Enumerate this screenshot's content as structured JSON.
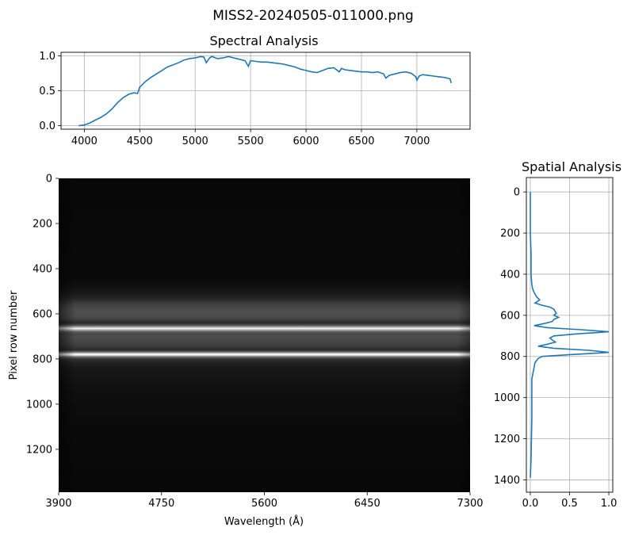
{
  "figure_title": "MISS2-20240505-011000.png",
  "colors": {
    "line": "#1f77b4",
    "grid": "#b0b0b0",
    "axes": "#000000"
  },
  "chart_data": [
    {
      "id": "spectral",
      "type": "line",
      "title": "Spectral Analysis",
      "xlabel": "",
      "ylabel": "",
      "xlim": [
        3790,
        7480
      ],
      "ylim": [
        -0.05,
        1.05
      ],
      "xticks": [
        4000,
        4500,
        5000,
        5500,
        6000,
        6500,
        7000
      ],
      "yticks": [
        0.0,
        0.5,
        1.0
      ],
      "ytick_labels": [
        "0.0",
        "0.5",
        "1.0"
      ],
      "grid": true,
      "x": [
        3950,
        4000,
        4050,
        4100,
        4150,
        4200,
        4250,
        4300,
        4350,
        4400,
        4450,
        4480,
        4500,
        4550,
        4600,
        4650,
        4700,
        4750,
        4800,
        4850,
        4900,
        4950,
        5000,
        5050,
        5080,
        5100,
        5130,
        5150,
        5200,
        5250,
        5300,
        5350,
        5400,
        5450,
        5480,
        5500,
        5550,
        5600,
        5650,
        5700,
        5750,
        5800,
        5850,
        5900,
        5950,
        6000,
        6050,
        6100,
        6150,
        6200,
        6250,
        6300,
        6320,
        6350,
        6400,
        6450,
        6500,
        6550,
        6600,
        6650,
        6700,
        6720,
        6750,
        6800,
        6850,
        6900,
        6950,
        6990,
        7000,
        7020,
        7050,
        7100,
        7150,
        7200,
        7250,
        7300,
        7310
      ],
      "y": [
        0.0,
        0.01,
        0.04,
        0.08,
        0.12,
        0.17,
        0.24,
        0.33,
        0.4,
        0.45,
        0.47,
        0.46,
        0.55,
        0.63,
        0.69,
        0.74,
        0.79,
        0.84,
        0.87,
        0.9,
        0.94,
        0.96,
        0.97,
        0.99,
        0.98,
        0.9,
        0.97,
        0.99,
        0.96,
        0.97,
        0.99,
        0.97,
        0.95,
        0.93,
        0.85,
        0.93,
        0.92,
        0.91,
        0.91,
        0.9,
        0.89,
        0.88,
        0.86,
        0.84,
        0.81,
        0.79,
        0.77,
        0.76,
        0.79,
        0.82,
        0.83,
        0.77,
        0.82,
        0.8,
        0.79,
        0.78,
        0.77,
        0.77,
        0.76,
        0.77,
        0.74,
        0.68,
        0.72,
        0.74,
        0.76,
        0.77,
        0.75,
        0.7,
        0.65,
        0.71,
        0.73,
        0.72,
        0.71,
        0.7,
        0.69,
        0.67,
        0.61
      ]
    },
    {
      "id": "image",
      "type": "heatmap",
      "title": "",
      "xlabel": "Wavelength (Å)",
      "ylabel": "Pixel row number",
      "xlim": [
        3900,
        7300
      ],
      "ylim": [
        1390,
        0
      ],
      "xticks": [
        3900,
        4750,
        5600,
        6450,
        7300
      ],
      "yticks": [
        0,
        200,
        400,
        600,
        800,
        1000,
        1200
      ],
      "colormap": "gray",
      "rows": [
        0,
        440,
        470,
        490,
        510,
        530,
        545,
        555,
        565,
        575,
        590,
        610,
        625,
        640,
        650,
        660,
        665,
        670,
        680,
        690,
        700,
        720,
        740,
        750,
        760,
        770,
        775,
        780,
        785,
        790,
        800,
        820,
        850,
        900,
        950,
        1000,
        1100,
        1390
      ],
      "intensity": [
        0.03,
        0.04,
        0.06,
        0.08,
        0.1,
        0.14,
        0.2,
        0.24,
        0.27,
        0.29,
        0.3,
        0.3,
        0.25,
        0.16,
        0.3,
        0.72,
        0.98,
        0.72,
        0.35,
        0.28,
        0.3,
        0.28,
        0.24,
        0.2,
        0.16,
        0.45,
        0.82,
        1.0,
        0.8,
        0.45,
        0.2,
        0.12,
        0.09,
        0.07,
        0.06,
        0.05,
        0.04,
        0.03
      ]
    },
    {
      "id": "spatial",
      "type": "line",
      "title": "Spatial Analysis",
      "xlabel": "",
      "ylabel": "",
      "xlim": [
        -0.05,
        1.05
      ],
      "ylim": [
        1460,
        -70
      ],
      "xticks": [
        0.0,
        0.5,
        1.0
      ],
      "xtick_labels": [
        "0.0",
        "0.5",
        "1.0"
      ],
      "yticks": [
        0,
        200,
        400,
        600,
        800,
        1000,
        1200,
        1400
      ],
      "grid": true,
      "x": [
        0.0,
        0.0,
        0.01,
        0.01,
        0.02,
        0.03,
        0.05,
        0.08,
        0.12,
        0.06,
        0.14,
        0.25,
        0.3,
        0.33,
        0.3,
        0.36,
        0.3,
        0.28,
        0.18,
        0.05,
        0.22,
        0.65,
        1.0,
        0.6,
        0.3,
        0.25,
        0.28,
        0.32,
        0.22,
        0.1,
        0.3,
        0.75,
        1.0,
        0.55,
        0.15,
        0.1,
        0.06,
        0.04,
        0.02,
        0.02,
        0.01,
        0.0
      ],
      "y": [
        0,
        200,
        300,
        400,
        450,
        470,
        490,
        510,
        525,
        540,
        550,
        560,
        570,
        590,
        600,
        610,
        620,
        630,
        640,
        650,
        660,
        670,
        680,
        690,
        700,
        710,
        720,
        730,
        740,
        750,
        760,
        770,
        780,
        790,
        800,
        810,
        830,
        870,
        910,
        1100,
        1300,
        1390
      ]
    }
  ]
}
